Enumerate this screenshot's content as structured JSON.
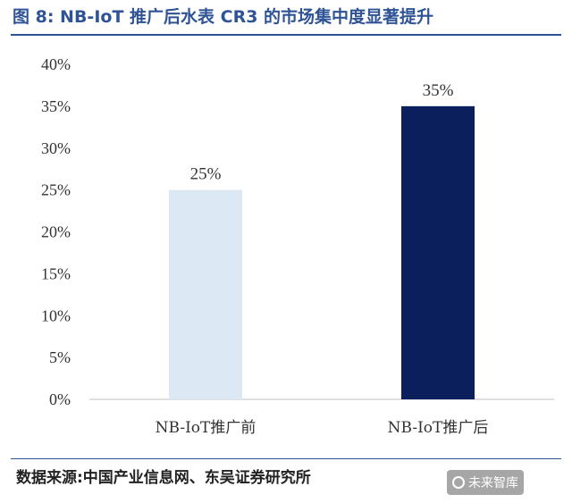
{
  "title": "图 8:  NB-IoT 推广后水表 CR3 的市场集中度显著提升",
  "source": "数据来源:中国产业信息网、东吴证券研究所",
  "watermark": {
    "text": "未来智库",
    "icon": "camera-icon"
  },
  "colors": {
    "title": "#2f5496",
    "bar_before": "#dde8f5",
    "bar_after": "#0b1f5c",
    "axis": "#bfbfbf"
  },
  "chart_data": {
    "type": "bar",
    "categories": [
      "NB-IoT推广前",
      "NB-IoT推广后"
    ],
    "values": [
      25,
      35
    ],
    "value_labels": [
      "25%",
      "35%"
    ],
    "title": "图 8:  NB-IoT 推广后水表 CR3 的市场集中度显著提升",
    "xlabel": "",
    "ylabel": "",
    "ylim": [
      0,
      40
    ],
    "yticks": [
      0,
      5,
      10,
      15,
      20,
      25,
      30,
      35,
      40
    ],
    "ytick_labels": [
      "0%",
      "5%",
      "10%",
      "15%",
      "20%",
      "25%",
      "30%",
      "35%",
      "40%"
    ],
    "grid": false,
    "legend": "none"
  }
}
